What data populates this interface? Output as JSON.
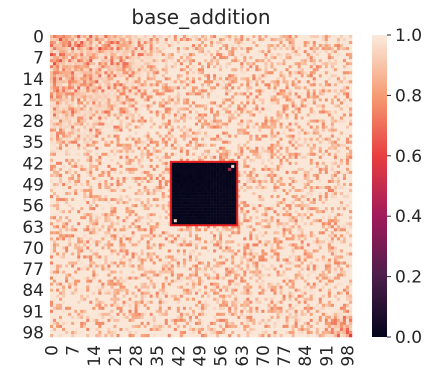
{
  "chart_data": {
    "type": "heatmap",
    "title": "base_addition",
    "xlabel": "",
    "ylabel": "",
    "rows": 100,
    "cols": 100,
    "x_tick_labels": [
      "0",
      "7",
      "14",
      "21",
      "28",
      "35",
      "42",
      "49",
      "56",
      "63",
      "70",
      "77",
      "84",
      "91",
      "98"
    ],
    "y_tick_labels": [
      "0",
      "7",
      "14",
      "21",
      "28",
      "35",
      "42",
      "49",
      "56",
      "63",
      "70",
      "77",
      "84",
      "91",
      "98"
    ],
    "colorbar": {
      "range": [
        0.0,
        1.0
      ],
      "tick_labels": [
        "0.0",
        "0.2",
        "0.4",
        "0.6",
        "0.8",
        "1.0"
      ],
      "colormap": [
        "#03051a",
        "#4c1d4b",
        "#a11a5b",
        "#e83f3f",
        "#f69c73",
        "#faebdd"
      ]
    },
    "value_description": "Values are mostly near 1.0 with scattered lower values around 0.7-0.9; the top-left corner and bottom-right corner trend lower (~0.65-0.8). A square block spanning rows 42-62 and columns 40-61 is ~0.0 (black), with a few near-white pixels at its corners.",
    "highlight_box": {
      "row_range": [
        42,
        62
      ],
      "col_range": [
        40,
        61
      ],
      "color": "#e8201f"
    }
  }
}
